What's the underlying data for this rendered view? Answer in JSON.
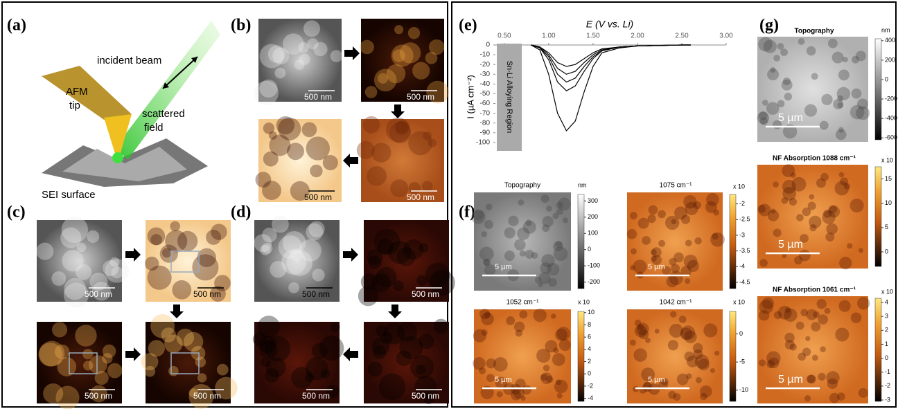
{
  "panel_a": {
    "label": "(a)",
    "texts": [
      "incident beam",
      "AFM",
      "tip",
      "scattered",
      "field",
      "SEI surface"
    ]
  },
  "panel_b": {
    "label": "(b)",
    "scale_labels": [
      "500 nm",
      "500 nm",
      "500 nm",
      "500 nm"
    ]
  },
  "panel_c": {
    "label": "(c)",
    "scale_labels": [
      "500 nm",
      "500 nm",
      "500 nm",
      "500 nm"
    ]
  },
  "panel_d": {
    "label": "(d)",
    "scale_labels": [
      "500 nm",
      "500 nm",
      "500 nm",
      "500 nm"
    ]
  },
  "panel_e": {
    "label": "(e)",
    "xlabel": "E (V vs. Li)",
    "ylabel": "I (µA cm⁻²)",
    "region_label": "Sn-Li Alloying Region",
    "xlim": [
      0.4,
      3.0
    ],
    "ylim": [
      -110,
      0
    ],
    "xticks": [
      {
        "value": 0.5,
        "label": "0.50"
      },
      {
        "value": 1.0,
        "label": "1.00"
      },
      {
        "value": 1.5,
        "label": "1.50"
      },
      {
        "value": 2.0,
        "label": "2.00"
      },
      {
        "value": 2.5,
        "label": "2.50"
      },
      {
        "value": 3.0,
        "label": "3.00"
      }
    ],
    "yticks": [
      0,
      -10,
      -20,
      -30,
      -40,
      -50,
      -60,
      -70,
      -80,
      -90,
      -100
    ],
    "x": [
      0.8,
      0.9,
      1.0,
      1.1,
      1.2,
      1.3,
      1.4,
      1.5,
      1.6,
      1.8,
      2.0,
      2.5,
      2.6
    ],
    "series": [
      {
        "color": "#000000",
        "values": [
          0,
          -2,
          -8,
          -18,
          -22,
          -20,
          -14,
          -8,
          -4,
          -2,
          -1,
          0,
          0
        ]
      },
      {
        "color": "#000000",
        "values": [
          0,
          -2,
          -10,
          -24,
          -30,
          -27,
          -18,
          -10,
          -5,
          -2,
          -1,
          0,
          0
        ]
      },
      {
        "color": "#000000",
        "values": [
          0,
          -3,
          -12,
          -30,
          -38,
          -34,
          -22,
          -12,
          -6,
          -2,
          -1,
          0,
          0
        ]
      },
      {
        "color": "#000000",
        "values": [
          0,
          -3,
          -15,
          -38,
          -47,
          -42,
          -27,
          -14,
          -6,
          -2,
          -1,
          0,
          0
        ]
      },
      {
        "color": "#000000",
        "values": [
          0,
          -5,
          -30,
          -70,
          -88,
          -78,
          -48,
          -22,
          -8,
          -3,
          -1,
          0,
          0
        ]
      }
    ]
  },
  "panel_f": {
    "label": "(f)",
    "maps": [
      {
        "title": "Topography",
        "unit": "nm",
        "colormap": "gray",
        "scale": "5 µm",
        "ticks": [
          300,
          200,
          100,
          0,
          -100,
          -200
        ],
        "lim": [
          -240,
          340
        ]
      },
      {
        "title": "1075 cm⁻¹",
        "unit": "x 10",
        "colormap": "orange",
        "scale": "5 µm",
        "ticks": [
          -2,
          -2.5,
          -3,
          -3.5,
          -4,
          -4.5
        ],
        "lim": [
          -4.7,
          -1.7
        ]
      },
      {
        "title": "1052 cm⁻¹",
        "unit": "x 10",
        "colormap": "orange",
        "scale": "5 µm",
        "ticks": [
          10,
          8,
          6,
          4,
          2,
          0,
          -2,
          -4
        ],
        "lim": [
          -4.5,
          10.2
        ]
      },
      {
        "title": "1042 cm⁻¹",
        "unit": "x 10",
        "colormap": "orange",
        "scale": "5 µm",
        "ticks": [
          0,
          -5,
          -10
        ],
        "lim": [
          -12,
          4
        ]
      }
    ]
  },
  "panel_g": {
    "label": "(g)",
    "maps": [
      {
        "title": "Topography",
        "unit": "nm",
        "colormap": "gray",
        "scale": "5 µm",
        "ticks": [
          400,
          200,
          0,
          -200,
          -400,
          -600
        ],
        "lim": [
          -620,
          420
        ]
      },
      {
        "title": "NF Absorption 1088 cm⁻¹",
        "unit": "x 10",
        "colormap": "orange",
        "scale": "5 µm",
        "ticks": [
          15,
          10,
          5,
          0
        ],
        "lim": [
          -3,
          17.5
        ]
      },
      {
        "title": "NF Absorption 1061 cm⁻¹",
        "unit": "x 10",
        "colormap": "orange",
        "scale": "5 µm",
        "ticks": [
          4,
          3,
          2,
          1,
          0,
          -1,
          -2,
          -3
        ],
        "lim": [
          -3.1,
          4.3
        ]
      }
    ]
  }
}
